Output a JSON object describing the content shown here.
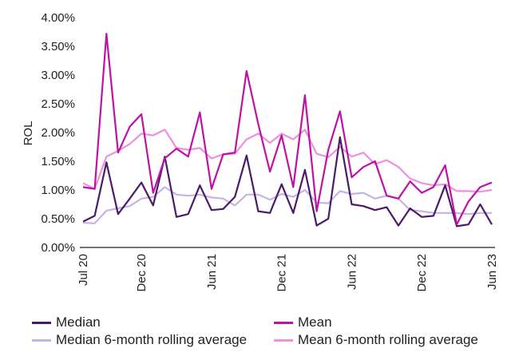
{
  "chart_data": {
    "type": "line",
    "title": "",
    "ylabel": "ROL",
    "xlabel": "",
    "ylim": [
      0,
      4
    ],
    "y_ticks": [
      "0.00%",
      "0.50%",
      "1.00%",
      "1.50%",
      "2.00%",
      "2.50%",
      "3.00%",
      "3.50%",
      "4.00%"
    ],
    "x_tick_labels": [
      {
        "index": 0,
        "label": "Jul 20"
      },
      {
        "index": 5,
        "label": "Dec 20"
      },
      {
        "index": 11,
        "label": "Jun 21"
      },
      {
        "index": 17,
        "label": "Dec 21"
      },
      {
        "index": 23,
        "label": "Jun 22"
      },
      {
        "index": 29,
        "label": "Dec 22"
      },
      {
        "index": 35,
        "label": "Jun 23"
      }
    ],
    "x": [
      "Jul 20",
      "Aug 20",
      "Sep 20",
      "Oct 20",
      "Nov 20",
      "Dec 20",
      "Jan 21",
      "Feb 21",
      "Mar 21",
      "Apr 21",
      "May 21",
      "Jun 21",
      "Jul 21",
      "Aug 21",
      "Sep 21",
      "Oct 21",
      "Nov 21",
      "Dec 21",
      "Jan 22",
      "Feb 22",
      "Mar 22",
      "Apr 22",
      "May 22",
      "Jun 22",
      "Jul 22",
      "Aug 22",
      "Sep 22",
      "Oct 22",
      "Nov 22",
      "Dec 22",
      "Jan 23",
      "Feb 23",
      "Mar 23",
      "Apr 23",
      "May 23",
      "Jun 23"
    ],
    "series": [
      {
        "name": "Median",
        "color": "#4a1a6b",
        "width": 2.2,
        "values": [
          0.45,
          0.55,
          1.48,
          0.58,
          0.85,
          1.13,
          0.73,
          1.58,
          0.53,
          0.58,
          1.08,
          0.65,
          0.67,
          0.88,
          1.6,
          0.63,
          0.6,
          1.1,
          0.6,
          1.35,
          0.38,
          0.5,
          1.92,
          0.75,
          0.72,
          0.65,
          0.7,
          0.38,
          0.68,
          0.53,
          0.55,
          1.08,
          0.37,
          0.4,
          0.75,
          0.4
        ]
      },
      {
        "name": "Mean",
        "color": "#c011a6",
        "width": 2.2,
        "values": [
          1.05,
          1.02,
          3.72,
          1.65,
          2.1,
          2.32,
          0.95,
          1.55,
          1.72,
          1.58,
          2.35,
          1.02,
          1.62,
          1.65,
          3.07,
          2.15,
          1.32,
          1.95,
          1.05,
          2.65,
          0.63,
          1.7,
          2.37,
          1.22,
          1.4,
          1.5,
          0.9,
          0.85,
          1.15,
          0.95,
          1.05,
          1.43,
          0.4,
          0.8,
          1.05,
          1.13
        ]
      },
      {
        "name": "Median 6-month rolling average",
        "color": "#c6b3e6",
        "width": 2.2,
        "values": [
          0.43,
          0.42,
          0.64,
          0.68,
          0.72,
          0.85,
          0.88,
          1.05,
          0.92,
          0.9,
          0.92,
          0.87,
          0.85,
          0.73,
          0.92,
          0.92,
          0.83,
          0.93,
          0.88,
          1.0,
          0.78,
          0.77,
          0.98,
          0.93,
          0.95,
          0.85,
          0.9,
          0.85,
          0.65,
          0.63,
          0.6,
          0.6,
          0.6,
          0.58,
          0.6,
          0.6
        ]
      },
      {
        "name": "Mean 6-month rolling average",
        "color": "#ef8fe0",
        "width": 2.2,
        "values": [
          1.12,
          1.02,
          1.58,
          1.68,
          1.8,
          1.98,
          1.95,
          2.05,
          1.73,
          1.7,
          1.73,
          1.55,
          1.62,
          1.63,
          1.88,
          1.98,
          1.82,
          1.98,
          1.88,
          2.05,
          1.63,
          1.57,
          1.75,
          1.58,
          1.65,
          1.45,
          1.52,
          1.4,
          1.2,
          1.12,
          1.08,
          1.1,
          0.98,
          0.98,
          0.97,
          1.0
        ]
      }
    ],
    "grid": false,
    "legend_position": "bottom"
  },
  "legend": {
    "median_label": "Median",
    "mean_label": "Mean",
    "median_roll_label": "Median 6-month rolling average",
    "mean_roll_label": "Mean 6-month rolling average"
  }
}
